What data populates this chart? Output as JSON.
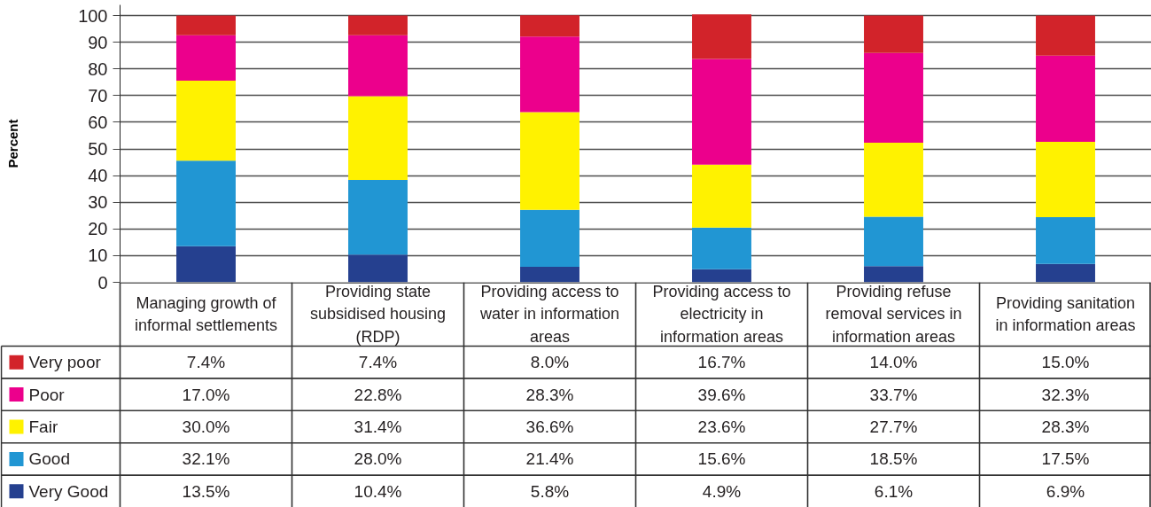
{
  "chart_data": {
    "type": "bar",
    "stacked": true,
    "ylabel": "Percent",
    "categories": [
      "Managing growth of informal settlements",
      "Providing state subsidised housing (RDP)",
      "Providing access to water in information areas",
      "Providing access to electricity in information areas",
      "Providing refuse removal services in information areas",
      "Providing sanitation in information areas"
    ],
    "series": [
      {
        "name": "Very Good",
        "color": "#25408f",
        "values": [
          13.5,
          10.4,
          5.8,
          4.9,
          6.1,
          6.9
        ],
        "value_labels": [
          "13.5%",
          "10.4%",
          "5.8%",
          "4.9%",
          "6.1%",
          "6.9%"
        ]
      },
      {
        "name": "Good",
        "color": "#2196d3",
        "values": [
          32.1,
          28.0,
          21.4,
          15.6,
          18.5,
          17.5
        ],
        "value_labels": [
          "32.1%",
          "28.0%",
          "21.4%",
          "15.6%",
          "18.5%",
          "17.5%"
        ]
      },
      {
        "name": "Fair",
        "color": "#fff200",
        "values": [
          30.0,
          31.4,
          36.6,
          23.6,
          27.7,
          28.3
        ],
        "value_labels": [
          "30.0%",
          "31.4%",
          "36.6%",
          "23.6%",
          "27.7%",
          "28.3%"
        ]
      },
      {
        "name": "Poor",
        "color": "#ec008c",
        "values": [
          17.0,
          22.8,
          28.3,
          39.6,
          33.7,
          32.3
        ],
        "value_labels": [
          "17.0%",
          "22.8%",
          "28.3%",
          "39.6%",
          "33.7%",
          "32.3%"
        ]
      },
      {
        "name": "Very poor",
        "color": "#d2232a",
        "values": [
          7.4,
          7.4,
          8.0,
          16.7,
          14.0,
          15.0
        ],
        "value_labels": [
          "7.4%",
          "7.4%",
          "8.0%",
          "16.7%",
          "14.0%",
          "15.0%"
        ]
      }
    ],
    "ylim": [
      0,
      104
    ],
    "yticks": [
      0,
      10,
      20,
      30,
      40,
      50,
      60,
      70,
      80,
      90,
      100
    ],
    "grid": "y",
    "legend": "bottom"
  }
}
